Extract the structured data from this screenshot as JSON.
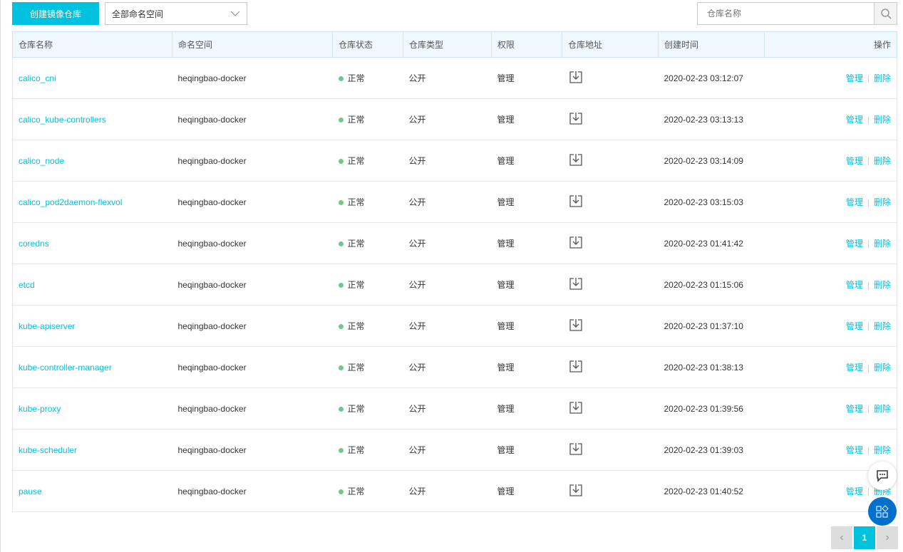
{
  "toolbar": {
    "create_label": "创建镜像仓库",
    "namespace_select": "全部命名空间",
    "search_placeholder": "仓库名称"
  },
  "columns": [
    "仓库名称",
    "命名空间",
    "仓库状态",
    "仓库类型",
    "权限",
    "仓库地址",
    "创建时间",
    "操作"
  ],
  "rows": [
    {
      "name": "calico_cni",
      "namespace": "heqingbao-docker",
      "status": "正常",
      "type": "公开",
      "perm": "管理",
      "created": "2020-02-23 03:12:07"
    },
    {
      "name": "calico_kube-controllers",
      "namespace": "heqingbao-docker",
      "status": "正常",
      "type": "公开",
      "perm": "管理",
      "created": "2020-02-23 03:13:13"
    },
    {
      "name": "calico_node",
      "namespace": "heqingbao-docker",
      "status": "正常",
      "type": "公开",
      "perm": "管理",
      "created": "2020-02-23 03:14:09"
    },
    {
      "name": "calico_pod2daemon-flexvol",
      "namespace": "heqingbao-docker",
      "status": "正常",
      "type": "公开",
      "perm": "管理",
      "created": "2020-02-23 03:15:03"
    },
    {
      "name": "coredns",
      "namespace": "heqingbao-docker",
      "status": "正常",
      "type": "公开",
      "perm": "管理",
      "created": "2020-02-23 01:41:42"
    },
    {
      "name": "etcd",
      "namespace": "heqingbao-docker",
      "status": "正常",
      "type": "公开",
      "perm": "管理",
      "created": "2020-02-23 01:15:06"
    },
    {
      "name": "kube-apiserver",
      "namespace": "heqingbao-docker",
      "status": "正常",
      "type": "公开",
      "perm": "管理",
      "created": "2020-02-23 01:37:10"
    },
    {
      "name": "kube-controller-manager",
      "namespace": "heqingbao-docker",
      "status": "正常",
      "type": "公开",
      "perm": "管理",
      "created": "2020-02-23 01:38:13"
    },
    {
      "name": "kube-proxy",
      "namespace": "heqingbao-docker",
      "status": "正常",
      "type": "公开",
      "perm": "管理",
      "created": "2020-02-23 01:39:56"
    },
    {
      "name": "kube-scheduler",
      "namespace": "heqingbao-docker",
      "status": "正常",
      "type": "公开",
      "perm": "管理",
      "created": "2020-02-23 01:39:03"
    },
    {
      "name": "pause",
      "namespace": "heqingbao-docker",
      "status": "正常",
      "type": "公开",
      "perm": "管理",
      "created": "2020-02-23 01:40:52"
    }
  ],
  "actions": {
    "manage": "管理",
    "delete": "删除"
  },
  "pagination": {
    "current": "1"
  },
  "colors": {
    "accent": "#00c1de",
    "status_ok": "#6ccb8a",
    "fab": "#0070cc"
  }
}
